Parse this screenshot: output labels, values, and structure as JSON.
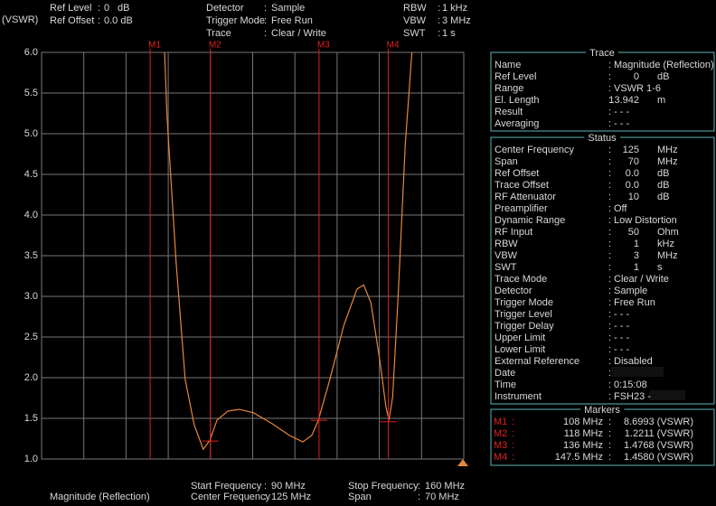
{
  "chart_data": {
    "type": "line",
    "y_unit_label": "(VSWR)",
    "trace_label": "Magnitude (Reflection)",
    "xlim": [
      90,
      160
    ],
    "xticks": [
      90,
      97,
      104,
      111,
      118,
      125,
      132,
      139,
      146,
      153,
      160
    ],
    "ylim": [
      1,
      6
    ],
    "yticks": [
      {
        "value": 1,
        "label": "1.0"
      },
      {
        "value": 1.5,
        "label": "1.5"
      },
      {
        "value": 2,
        "label": "2.0"
      },
      {
        "value": 2.5,
        "label": "2.5"
      },
      {
        "value": 3,
        "label": "3.0"
      },
      {
        "value": 3.5,
        "label": "3.5"
      },
      {
        "value": 4,
        "label": "4.0"
      },
      {
        "value": 4.5,
        "label": "4.5"
      },
      {
        "value": 5,
        "label": "5.0"
      },
      {
        "value": 5.5,
        "label": "5.5"
      },
      {
        "value": 6,
        "label": "6.0"
      }
    ],
    "grid": true,
    "x": [
      110.4,
      110.8,
      112.3,
      113.8,
      115.3,
      116.8,
      117.9,
      119.1,
      120.9,
      122.8,
      125.1,
      128.1,
      131.1,
      133.3,
      134.8,
      135.9,
      137.8,
      140.1,
      142.3,
      143.4,
      144.6,
      146.1,
      147.1,
      147.6,
      148.2,
      149.1,
      150.3,
      151.4
    ],
    "series": [
      {
        "name": "Magnitude (Reflection)",
        "color": "#e8863a",
        "values": [
          6.0,
          5.2,
          3.42,
          1.98,
          1.42,
          1.12,
          1.23,
          1.48,
          1.59,
          1.61,
          1.57,
          1.44,
          1.29,
          1.21,
          1.29,
          1.48,
          1.98,
          2.64,
          3.09,
          3.14,
          2.92,
          2.2,
          1.64,
          1.48,
          1.76,
          2.98,
          4.87,
          6.0
        ]
      }
    ],
    "markers": {
      "color": "#e02020",
      "names": [
        "M1",
        "M2",
        "M3",
        "M4"
      ],
      "x": [
        108,
        118,
        136,
        147.5
      ],
      "x_labels": [
        "108 MHz",
        "118 MHz",
        "136 MHz",
        "147.5 MHz"
      ],
      "values": [
        8.6993,
        1.2211,
        1.4768,
        1.458
      ],
      "value_labels": [
        "8.6993 (VSWR)",
        "1.2211 (VSWR)",
        "1.4768 (VSWR)",
        "1.4580 (VSWR)"
      ]
    }
  },
  "header": [
    [
      {
        "label": "Ref Level",
        "value": "0",
        "unit": "dB"
      },
      {
        "label": "Ref Offset",
        "value": "0.0 dB"
      }
    ],
    [
      {
        "label": "Detector",
        "value": "Sample"
      },
      {
        "label": "Trigger Mode",
        "value": "Free Run"
      },
      {
        "label": "Trace",
        "value": "Clear / Write"
      }
    ],
    [
      {
        "label": "RBW",
        "value": "1 kHz"
      },
      {
        "label": "VBW",
        "value": "3 MHz"
      },
      {
        "label": "SWT",
        "value": "1 s"
      }
    ]
  ],
  "footer": [
    [
      {
        "label": "Start Frequency",
        "value": "90 MHz"
      },
      {
        "label": "Center Frequency",
        "value": "125 MHz"
      }
    ],
    [
      {
        "label": "Stop Frequency",
        "value": "160 MHz"
      },
      {
        "label": "Span",
        "value": "70 MHz"
      }
    ]
  ],
  "trace_panel": {
    "title": "Trace",
    "rows": [
      {
        "label": "Name",
        "value": "Magnitude (Reflection)"
      },
      {
        "label": "Ref Level",
        "value": "0",
        "unit": "dB"
      },
      {
        "label": "Range",
        "value": "VSWR 1-6"
      },
      {
        "label": "El. Length",
        "value": "13.942",
        "unit": "m"
      },
      {
        "label": "Result",
        "value": "- - -"
      },
      {
        "label": "Averaging",
        "value": "- - -"
      }
    ]
  },
  "status_panel": {
    "title": "Status",
    "rows": [
      {
        "label": "Center Frequency",
        "value": "125",
        "unit": "MHz"
      },
      {
        "label": "Span",
        "value": "70",
        "unit": "MHz"
      },
      {
        "label": "Ref Offset",
        "value": "0.0",
        "unit": "dB"
      },
      {
        "label": "Trace Offset",
        "value": "0.0",
        "unit": "dB"
      },
      {
        "label": "RF Attenuator",
        "value": "10",
        "unit": "dB"
      },
      {
        "label": "Preamplifier",
        "value": "Off"
      },
      {
        "label": "Dynamic Range",
        "value": "Low Distortion"
      },
      {
        "label": "RF Input",
        "value": "50",
        "unit": "Ohm"
      },
      {
        "label": "RBW",
        "value": "1",
        "unit": "kHz"
      },
      {
        "label": "VBW",
        "value": "3",
        "unit": "MHz"
      },
      {
        "label": "SWT",
        "value": "1",
        "unit": "s"
      },
      {
        "label": "Trace Mode",
        "value": "Clear / Write"
      },
      {
        "label": "Detector",
        "value": "Sample"
      },
      {
        "label": "Trigger Mode",
        "value": "Free Run"
      },
      {
        "label": "Trigger Level",
        "value": "- - -"
      },
      {
        "label": "Trigger Delay",
        "value": "- - -"
      },
      {
        "label": "Upper Limit",
        "value": "- - -"
      },
      {
        "label": "Lower Limit",
        "value": "- - -"
      },
      {
        "label": "External Reference",
        "value": "Disabled"
      },
      {
        "label": "Date"
      },
      {
        "label": "Time",
        "value": "0:15:08"
      },
      {
        "label": "Instrument",
        "value": "FSH23 -"
      }
    ]
  },
  "markers_panel": {
    "title": "Markers"
  }
}
